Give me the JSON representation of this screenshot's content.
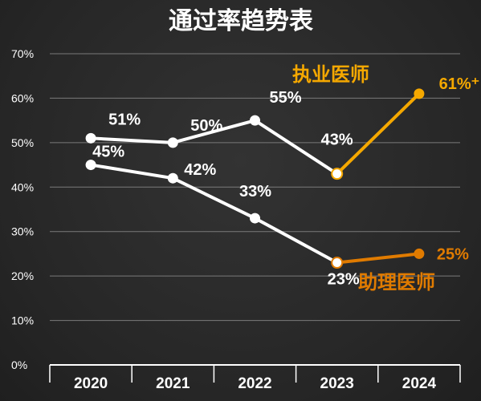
{
  "chart_data": {
    "type": "line",
    "title": "通过率趋势表",
    "categories": [
      "2020",
      "2021",
      "2022",
      "2023",
      "2024"
    ],
    "ylim": [
      0,
      70
    ],
    "yticks": [
      "0%",
      "10%",
      "20%",
      "30%",
      "40%",
      "50%",
      "60%",
      "70%"
    ],
    "grid": true,
    "series": [
      {
        "name": "执业医师",
        "values": [
          51,
          50,
          55,
          43,
          61
        ],
        "labels": [
          "51%",
          "50%",
          "55%",
          "43%",
          "61%⁺"
        ],
        "color": "#ffffff",
        "highlight_color": "#f5a800"
      },
      {
        "name": "助理医师",
        "values": [
          45,
          42,
          33,
          23,
          25
        ],
        "labels": [
          "45%",
          "42%",
          "33%",
          "23%",
          "25%"
        ],
        "color": "#ffffff",
        "highlight_color": "#e07b00"
      }
    ]
  }
}
